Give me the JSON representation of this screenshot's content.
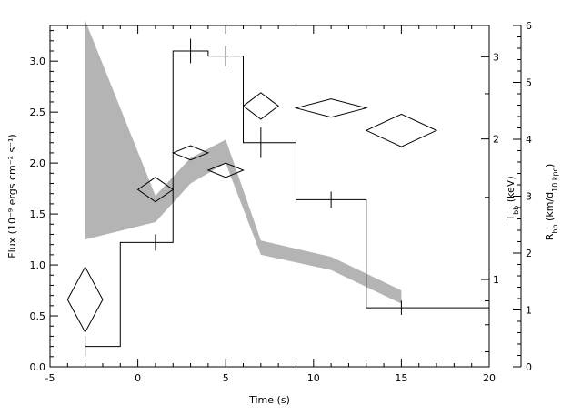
{
  "chart_data": {
    "type": "scatter",
    "xlabel": "Time (s)",
    "ylabel_left": "Flux (10⁻⁹ ergs cm⁻² s⁻¹)",
    "ylabel_right_inner": "T_bb (keV)",
    "ylabel_right_outer": "R_bb (km/d_10 kpc)",
    "xlim": [
      -5,
      20
    ],
    "ylim_left": [
      0,
      3.35
    ],
    "ylim_temperature": [
      0.65,
      3.5
    ],
    "ylim_radius": [
      0,
      6
    ],
    "x_ticks": [
      "-5",
      "0",
      "5",
      "10",
      "15",
      "20"
    ],
    "y_ticks_left": [
      "0.0",
      "0.5",
      "1.0",
      "1.5",
      "2.0",
      "2.5",
      "3.0"
    ],
    "y_ticks_temperature": [
      "1",
      "2",
      "3"
    ],
    "y_ticks_radius": [
      "0",
      "1",
      "2",
      "3",
      "4",
      "5",
      "6"
    ],
    "flux_histogram": [
      {
        "x0": -3,
        "x1": -1,
        "y": 0.2
      },
      {
        "x0": -1,
        "x1": 2,
        "y": 1.22
      },
      {
        "x0": 2,
        "x1": 4,
        "y": 3.1
      },
      {
        "x0": 4,
        "x1": 6,
        "y": 3.05
      },
      {
        "x0": 6,
        "x1": 9,
        "y": 2.2
      },
      {
        "x0": 9,
        "x1": 13,
        "y": 1.64
      },
      {
        "x0": 13,
        "x1": 20,
        "y": 0.58
      }
    ],
    "flux_error_bars": [
      {
        "x": -3,
        "y": 0.2,
        "err": 0.1
      },
      {
        "x": 1,
        "y": 1.22,
        "err": 0.08
      },
      {
        "x": 3,
        "y": 3.1,
        "err": 0.12
      },
      {
        "x": 5,
        "y": 3.05,
        "err": 0.1
      },
      {
        "x": 7,
        "y": 2.2,
        "err": 0.15
      },
      {
        "x": 11,
        "y": 1.64,
        "err": 0.08
      },
      {
        "x": 15,
        "y": 0.58,
        "err": 0.07
      }
    ],
    "temperature_diamonds": [
      {
        "x": -3,
        "xerr": 1,
        "y": 0.66,
        "yerr": 0.32
      },
      {
        "x": 1,
        "xerr": 1,
        "y": 1.74,
        "yerr": 0.12
      },
      {
        "x": 3,
        "xerr": 1,
        "y": 2.1,
        "yerr": 0.07
      },
      {
        "x": 5,
        "xerr": 1,
        "y": 1.93,
        "yerr": 0.07
      },
      {
        "x": 7,
        "xerr": 1,
        "y": 2.56,
        "yerr": 0.13
      },
      {
        "x": 11,
        "xerr": 2,
        "y": 2.54,
        "yerr": 0.09
      },
      {
        "x": 15,
        "xerr": 2,
        "y": 2.32,
        "yerr": 0.16
      }
    ],
    "radius_band": [
      {
        "x": -3,
        "low": 1.25,
        "high": 3.4
      },
      {
        "x": 1,
        "low": 1.42,
        "high": 1.68
      },
      {
        "x": 3,
        "low": 1.8,
        "high": 2.05
      },
      {
        "x": 5,
        "low": 2.0,
        "high": 2.23
      },
      {
        "x": 7,
        "low": 1.1,
        "high": 1.24
      },
      {
        "x": 11,
        "low": 0.95,
        "high": 1.08
      },
      {
        "x": 15,
        "low": 0.62,
        "high": 0.75
      }
    ],
    "band_color": "#b4b4b4",
    "line_color": "#000000"
  }
}
